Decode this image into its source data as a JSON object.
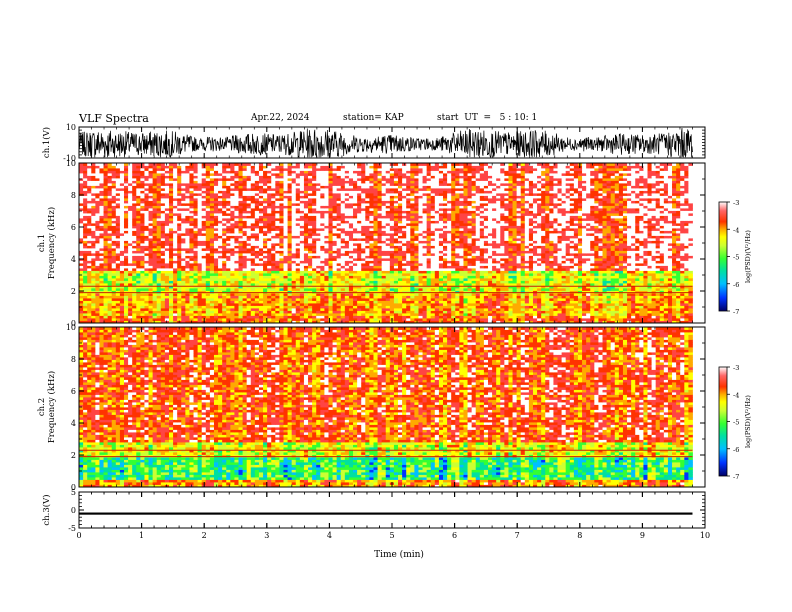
{
  "header": {
    "title": "VLF Spectra",
    "date": "Apr.22, 2024",
    "station": "station= KAP",
    "start_ut": "start  UT  =   5 : 10: 1"
  },
  "chart_data": {
    "type": "heatmap",
    "panels": [
      {
        "id": "ch1-waveform",
        "type": "line",
        "ylabel": "ch.1(V)",
        "ylim": [
          -10,
          10
        ],
        "yticks": [
          10,
          -10
        ],
        "xlim": [
          0,
          10
        ],
        "series": [
          {
            "x_range": [
              0,
              9.8
            ],
            "y_range": [
              -8,
              7
            ]
          }
        ]
      },
      {
        "id": "ch1-spectrogram",
        "type": "heatmap",
        "ylabel": "ch.1\nFrequency (kHz)",
        "ylim": [
          0,
          10
        ],
        "yticks": [
          0,
          2,
          4,
          6,
          8,
          10
        ],
        "xlim": [
          0,
          10
        ],
        "data_extent_x": [
          0,
          9.8
        ],
        "description_levels": [
          {
            "freq_range": [
              0,
              0.5
            ],
            "log_psd": -4
          },
          {
            "freq_range": [
              0.5,
              1.8
            ],
            "log_psd": -4.3
          },
          {
            "freq_range": [
              1.8,
              3.3
            ],
            "log_psd": -4.8
          },
          {
            "freq_range": [
              3.3,
              10
            ],
            "log_psd": -3.5
          }
        ],
        "colorbar": {
          "label": "log(PSD)(V²/Hz)",
          "range": [
            -7,
            -3
          ],
          "ticks": [
            -3,
            -4,
            -5,
            -6,
            -7
          ]
        }
      },
      {
        "id": "ch2-spectrogram",
        "type": "heatmap",
        "ylabel": "ch.2\nFrequency (kHz)",
        "ylim": [
          0,
          10
        ],
        "yticks": [
          0,
          2,
          4,
          6,
          8,
          10
        ],
        "xlim": [
          0,
          10
        ],
        "data_extent_x": [
          0,
          9.8
        ],
        "description_levels": [
          {
            "freq_range": [
              0,
              0.4
            ],
            "log_psd": -4.2
          },
          {
            "freq_range": [
              0.4,
              1.9
            ],
            "log_psd": -5.5
          },
          {
            "freq_range": [
              1.9,
              2.8
            ],
            "log_psd": -4.8
          },
          {
            "freq_range": [
              2.8,
              10
            ],
            "log_psd": -3.9
          }
        ],
        "colorbar": {
          "label": "log(PSD)(V²/Hz)",
          "range": [
            -7,
            -3
          ],
          "ticks": [
            -3,
            -4,
            -5,
            -6,
            -7
          ]
        }
      },
      {
        "id": "ch3-waveform",
        "type": "line",
        "ylabel": "ch.3(V)",
        "ylim": [
          -5,
          5
        ],
        "yticks": [
          5,
          0,
          -5
        ],
        "xlim": [
          0,
          10
        ],
        "series": [
          {
            "x_range": [
              0,
              9.8
            ],
            "y_range": [
              -1.3,
              -0.7
            ]
          }
        ]
      }
    ],
    "xlabel": "Time (min)",
    "xticks": [
      0,
      1,
      2,
      3,
      4,
      5,
      6,
      7,
      8,
      9,
      10
    ],
    "grid": false,
    "colormap": [
      "#000066",
      "#0033ff",
      "#00bfff",
      "#00e0a0",
      "#33ff33",
      "#ccff33",
      "#ffff00",
      "#ffaa00",
      "#ff3300",
      "#ff4444",
      "#ffffff"
    ]
  }
}
